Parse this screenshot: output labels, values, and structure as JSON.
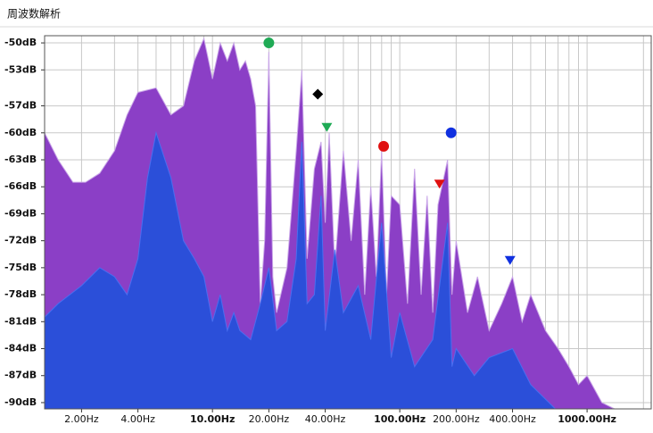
{
  "chart_data": {
    "type": "area",
    "title": "周波数解析",
    "xscale": "log",
    "xlim": [
      1.27,
      2200
    ],
    "ylim": [
      -90.7,
      -49.2
    ],
    "grid": true,
    "xticks": [
      {
        "value": 2,
        "label": "2.00Hz",
        "bold": false
      },
      {
        "value": 4,
        "label": "4.00Hz",
        "bold": false
      },
      {
        "value": 10,
        "label": "10.00Hz",
        "bold": true
      },
      {
        "value": 20,
        "label": "20.00Hz",
        "bold": false
      },
      {
        "value": 40,
        "label": "40.00Hz",
        "bold": false
      },
      {
        "value": 100,
        "label": "100.00Hz",
        "bold": true
      },
      {
        "value": 200,
        "label": "200.00Hz",
        "bold": false
      },
      {
        "value": 400,
        "label": "400.00Hz",
        "bold": false
      },
      {
        "value": 1000,
        "label": "1000.00Hz",
        "bold": true
      }
    ],
    "xminor": [
      2,
      3,
      4,
      5,
      6,
      7,
      8,
      9,
      10,
      20,
      30,
      40,
      50,
      60,
      70,
      80,
      90,
      100,
      200,
      300,
      400,
      500,
      600,
      700,
      800,
      900,
      1000,
      2000
    ],
    "yticks": [
      {
        "value": -50,
        "label": "-50dB"
      },
      {
        "value": -53,
        "label": "-53dB"
      },
      {
        "value": -57,
        "label": "-57dB"
      },
      {
        "value": -60,
        "label": "-60dB"
      },
      {
        "value": -63,
        "label": "-63dB"
      },
      {
        "value": -66,
        "label": "-66dB"
      },
      {
        "value": -69,
        "label": "-69dB"
      },
      {
        "value": -72,
        "label": "-72dB"
      },
      {
        "value": -75,
        "label": "-75dB"
      },
      {
        "value": -78,
        "label": "-78dB"
      },
      {
        "value": -81,
        "label": "-81dB"
      },
      {
        "value": -84,
        "label": "-84dB"
      },
      {
        "value": -87,
        "label": "-87dB"
      },
      {
        "value": -90,
        "label": "-90dB"
      }
    ],
    "series": [
      {
        "color": "#8b3fc6",
        "x": [
          1.27,
          1.5,
          1.8,
          2.1,
          2.5,
          3,
          3.5,
          4,
          5,
          6,
          7,
          8,
          9,
          10,
          11,
          12,
          13,
          14,
          15,
          16,
          17,
          18,
          19,
          20,
          21,
          22,
          25,
          28,
          30,
          32,
          35,
          38,
          40,
          42,
          45,
          50,
          55,
          60,
          65,
          70,
          75,
          80,
          85,
          90,
          100,
          110,
          120,
          130,
          140,
          150,
          160,
          180,
          190,
          200,
          230,
          260,
          300,
          350,
          400,
          450,
          500,
          600,
          700,
          800,
          900,
          1000,
          1200,
          1500
        ],
        "values": [
          -60,
          -63,
          -65.5,
          -65.5,
          -64.5,
          -62,
          -58,
          -55.5,
          -55,
          -58,
          -57,
          -52,
          -49.5,
          -54,
          -50,
          -52,
          -50,
          -53,
          -52,
          -54,
          -57,
          -79,
          -72,
          -51,
          -76,
          -80,
          -75,
          -62,
          -53,
          -74,
          -64,
          -61,
          -70,
          -60,
          -75,
          -62,
          -72,
          -63,
          -78,
          -66,
          -76,
          -62,
          -78,
          -67,
          -68,
          -79,
          -64,
          -78,
          -67,
          -80,
          -68,
          -63,
          -78,
          -72,
          -80,
          -76,
          -82,
          -79,
          -76,
          -81,
          -78,
          -82,
          -84,
          -86,
          -88,
          -87,
          -90,
          -91
        ]
      },
      {
        "color": "#2b4fd9",
        "x": [
          1.27,
          1.5,
          2,
          2.5,
          3,
          3.5,
          4,
          4.5,
          5,
          6,
          7,
          8,
          9,
          10,
          11,
          12,
          13,
          14,
          16,
          18,
          20,
          22,
          25,
          28,
          30,
          32,
          35,
          38,
          40,
          45,
          50,
          60,
          70,
          80,
          90,
          100,
          120,
          150,
          180,
          190,
          200,
          250,
          300,
          400,
          500,
          700
        ],
        "values": [
          -80.5,
          -79,
          -77,
          -75,
          -76,
          -78,
          -74,
          -65,
          -60,
          -65,
          -72,
          -74,
          -76,
          -81,
          -78,
          -82,
          -80,
          -82,
          -83,
          -79,
          -75,
          -82,
          -81,
          -74,
          -61,
          -79,
          -78,
          -67,
          -82,
          -73,
          -80,
          -77,
          -83,
          -70,
          -85,
          -80,
          -86,
          -83,
          -70,
          -86,
          -84,
          -87,
          -85,
          -84,
          -88,
          -91
        ]
      }
    ],
    "markers": [
      {
        "x": 20,
        "value": -50,
        "color": "#1faa55",
        "shape": "circle"
      },
      {
        "x": 36.5,
        "value": -55.7,
        "color": "#000000",
        "shape": "diamond"
      },
      {
        "x": 40.8,
        "value": -59.4,
        "color": "#1faa55",
        "shape": "triangle"
      },
      {
        "x": 82,
        "value": -61.5,
        "color": "#e01010",
        "shape": "circle"
      },
      {
        "x": 163,
        "value": -65.7,
        "color": "#e01010",
        "shape": "triangle"
      },
      {
        "x": 188,
        "value": -60,
        "color": "#1030e0",
        "shape": "circle"
      },
      {
        "x": 388,
        "value": -74.2,
        "color": "#1030e0",
        "shape": "triangle"
      }
    ]
  }
}
